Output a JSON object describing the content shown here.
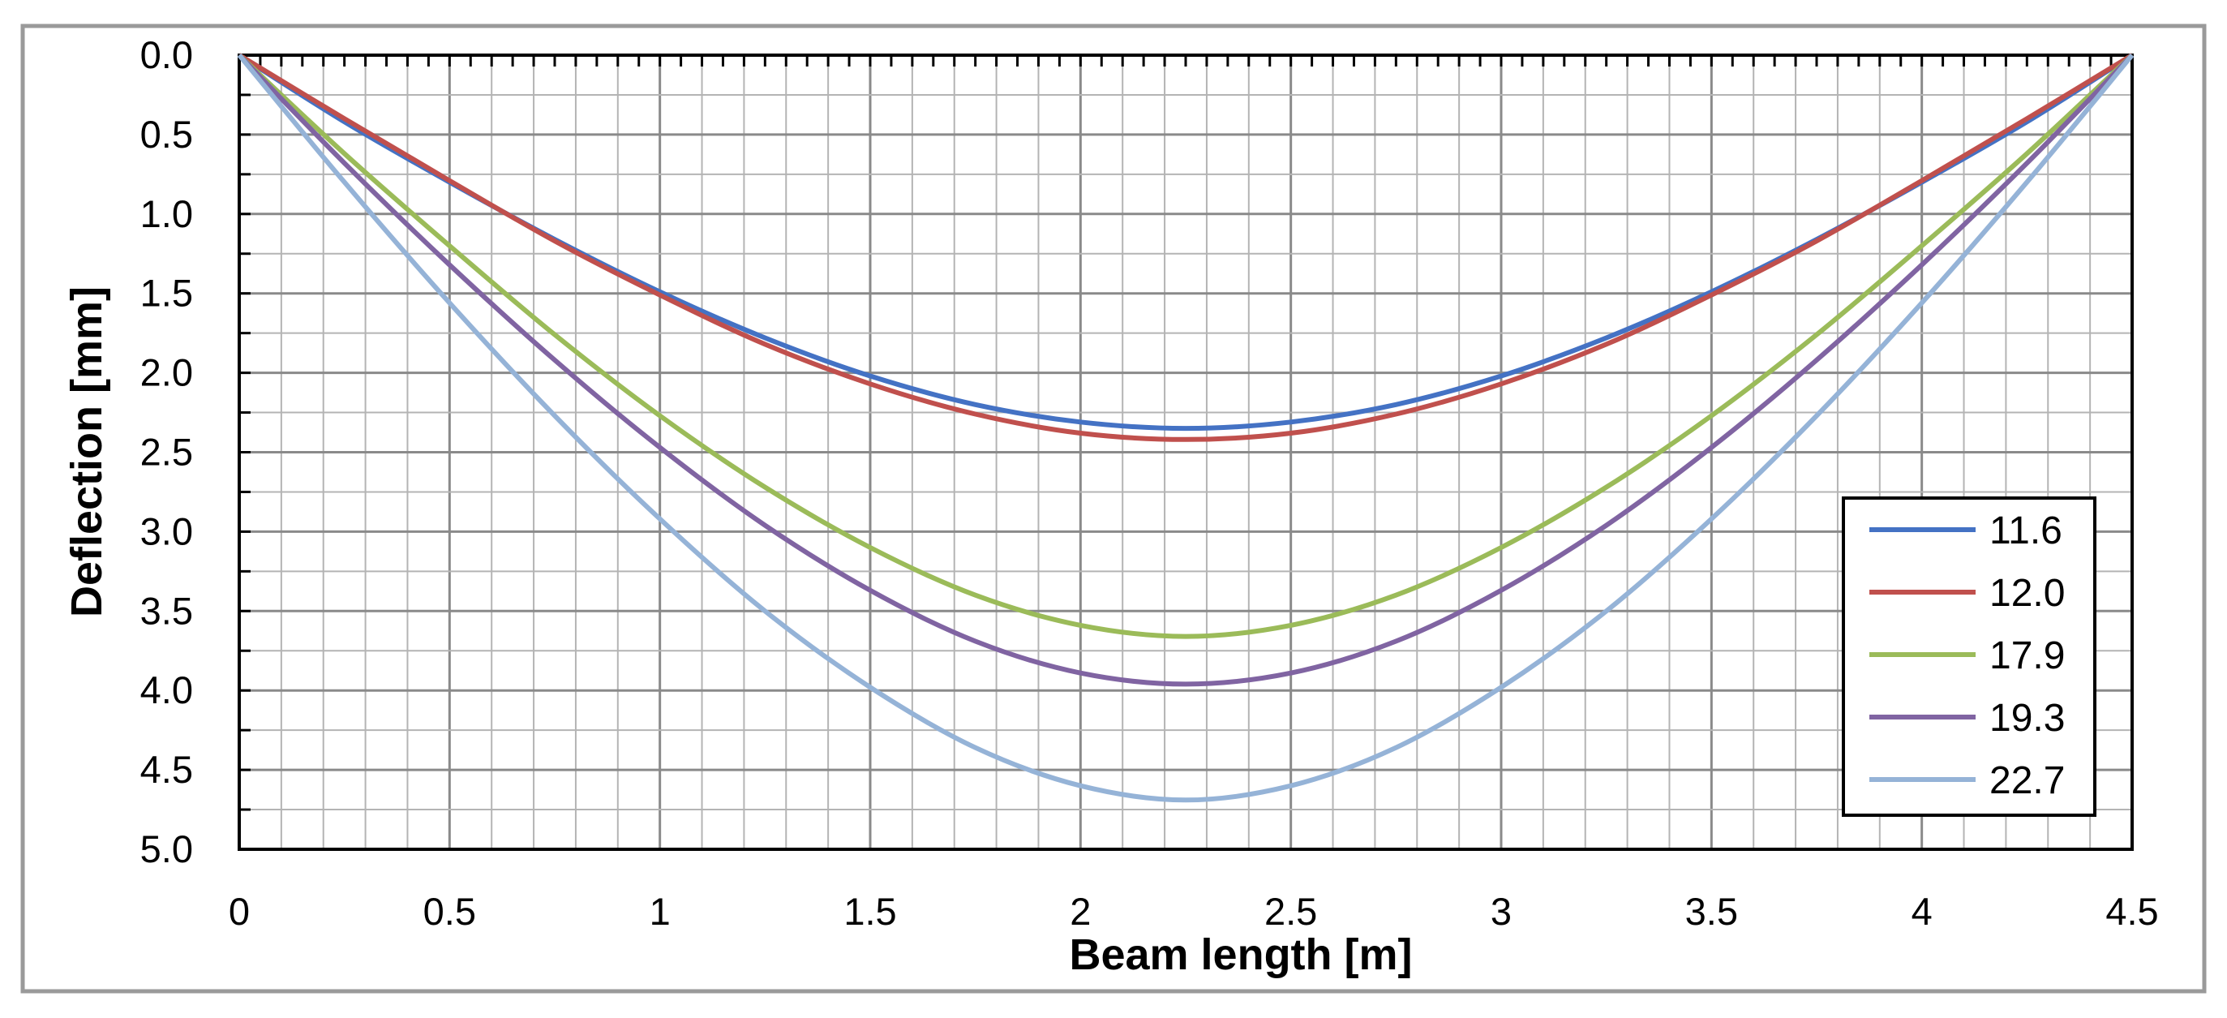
{
  "chart_data": {
    "type": "line",
    "title": "",
    "xlabel": "Beam length [m]",
    "ylabel": "Deflection [mm]",
    "xlim": [
      0,
      4.5
    ],
    "ylim": [
      0,
      5.0
    ],
    "y_axis_reversed": true,
    "x_ticks": [
      "0",
      "0.5",
      "1",
      "1.5",
      "2",
      "2.5",
      "3",
      "3.5",
      "4",
      "4.5"
    ],
    "y_ticks": [
      "0.0",
      "0.5",
      "1.0",
      "1.5",
      "2.0",
      "2.5",
      "3.0",
      "3.5",
      "4.0",
      "4.5",
      "5.0"
    ],
    "grid": "major and minor",
    "legend_position": "bottom-right",
    "x": [
      0,
      0.25,
      0.5,
      0.75,
      1.0,
      1.25,
      1.5,
      1.75,
      2.0,
      2.25,
      2.5,
      2.75,
      3.0,
      3.25,
      3.5,
      3.75,
      4.0,
      4.25,
      4.5
    ],
    "series": [
      {
        "name": "11.6",
        "color": "#4472C4",
        "values": [
          0,
          0.42,
          0.8,
          1.16,
          1.49,
          1.78,
          2.02,
          2.2,
          2.31,
          2.35,
          2.31,
          2.2,
          2.02,
          1.78,
          1.49,
          1.16,
          0.8,
          0.42,
          0
        ]
      },
      {
        "name": "12.0",
        "color": "#C0504D",
        "values": [
          0,
          0.4,
          0.79,
          1.17,
          1.51,
          1.82,
          2.07,
          2.26,
          2.38,
          2.42,
          2.38,
          2.26,
          2.07,
          1.82,
          1.51,
          1.17,
          0.79,
          0.4,
          0
        ]
      },
      {
        "name": "17.9",
        "color": "#9BBB59",
        "values": [
          0,
          0.62,
          1.2,
          1.76,
          2.27,
          2.72,
          3.1,
          3.4,
          3.59,
          3.66,
          3.59,
          3.4,
          3.1,
          2.72,
          2.27,
          1.76,
          1.2,
          0.62,
          0
        ]
      },
      {
        "name": "19.3",
        "color": "#8064A2",
        "values": [
          0,
          0.68,
          1.32,
          1.92,
          2.47,
          2.96,
          3.37,
          3.69,
          3.89,
          3.96,
          3.89,
          3.69,
          3.37,
          2.96,
          2.47,
          1.92,
          1.32,
          0.68,
          0
        ]
      },
      {
        "name": "22.7",
        "color": "#95B3D7",
        "values": [
          0,
          0.8,
          1.56,
          2.27,
          2.92,
          3.5,
          3.98,
          4.36,
          4.6,
          4.69,
          4.6,
          4.36,
          3.98,
          3.5,
          2.92,
          2.27,
          1.56,
          0.8,
          0
        ]
      }
    ]
  }
}
